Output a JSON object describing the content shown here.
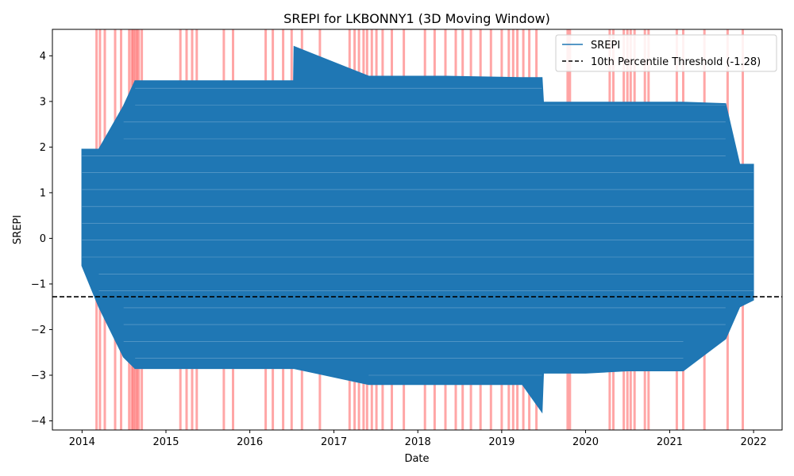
{
  "chart_data": {
    "type": "line",
    "title": "SREPI for LKBONNY1 (3D Moving Window)",
    "xlabel": "Date",
    "ylabel": "SREPI",
    "xlim": [
      "2013-08-25",
      "2022-05-05"
    ],
    "ylim": [
      -4.2,
      4.58
    ],
    "x_ticks": [
      "2014",
      "2015",
      "2016",
      "2017",
      "2018",
      "2019",
      "2020",
      "2021",
      "2022"
    ],
    "y_ticks": [
      -4,
      -3,
      -2,
      -1,
      0,
      1,
      2,
      3,
      4
    ],
    "grid": false,
    "legend_position": "upper-right",
    "series": [
      {
        "name": "SREPI",
        "color": "#1f77b4",
        "x": [
          "2014-01-01",
          "2014-03-15",
          "2014-07-01",
          "2014-08-20",
          "2015-05-01",
          "2016-07-10",
          "2016-07-12",
          "2017-06-01",
          "2018-05-01",
          "2019-04-01",
          "2019-06-25",
          "2019-07-01",
          "2020-01-01",
          "2020-07-01",
          "2021-03-01",
          "2021-09-01",
          "2021-11-01",
          "2021-12-31"
        ],
        "ymin": [
          -0.6,
          -1.5,
          -2.6,
          -2.85,
          -2.85,
          -2.85,
          -2.85,
          -3.2,
          -3.2,
          -3.2,
          -3.8,
          -2.95,
          -2.95,
          -2.9,
          -2.9,
          -2.2,
          -1.5,
          -1.35
        ],
        "ymax": [
          1.95,
          1.95,
          2.9,
          3.45,
          3.45,
          3.45,
          4.2,
          3.55,
          3.55,
          3.52,
          3.52,
          2.98,
          2.98,
          2.98,
          2.98,
          2.95,
          1.62,
          1.62
        ]
      },
      {
        "name": "10th Percentile Threshold (-1.28)",
        "type": "hline",
        "color": "#000000",
        "dash": "dashed",
        "y": -1.28
      }
    ],
    "drought_spans": {
      "color": "#ff0000",
      "opacity": 0.35,
      "dates": [
        "2014-03-05",
        "2014-03-20",
        "2014-04-10",
        "2014-05-25",
        "2014-06-20",
        "2014-07-25",
        "2014-08-05",
        "2014-08-12",
        "2014-08-20",
        "2014-08-28",
        "2014-09-05",
        "2014-09-18",
        "2015-03-05",
        "2015-04-01",
        "2015-04-25",
        "2015-05-15",
        "2015-09-10",
        "2015-10-20",
        "2016-03-10",
        "2016-04-10",
        "2016-05-25",
        "2016-07-01",
        "2016-08-15",
        "2016-11-01",
        "2017-03-10",
        "2017-04-01",
        "2017-04-20",
        "2017-05-10",
        "2017-05-25",
        "2017-06-15",
        "2017-07-05",
        "2017-08-01",
        "2017-09-10",
        "2017-11-01",
        "2018-02-01",
        "2018-03-15",
        "2018-05-01",
        "2018-06-15",
        "2018-07-15",
        "2018-08-20",
        "2018-10-01",
        "2018-11-15",
        "2019-01-01",
        "2019-02-01",
        "2019-02-20",
        "2019-03-10",
        "2019-04-05",
        "2019-05-01",
        "2019-06-01",
        "2019-10-15",
        "2019-10-25",
        "2020-04-15",
        "2020-05-01",
        "2020-06-15",
        "2020-07-01",
        "2020-07-15",
        "2020-08-01",
        "2020-09-15",
        "2020-10-01",
        "2021-02-01",
        "2021-03-01",
        "2021-06-01",
        "2021-09-10",
        "2021-11-15"
      ]
    }
  }
}
